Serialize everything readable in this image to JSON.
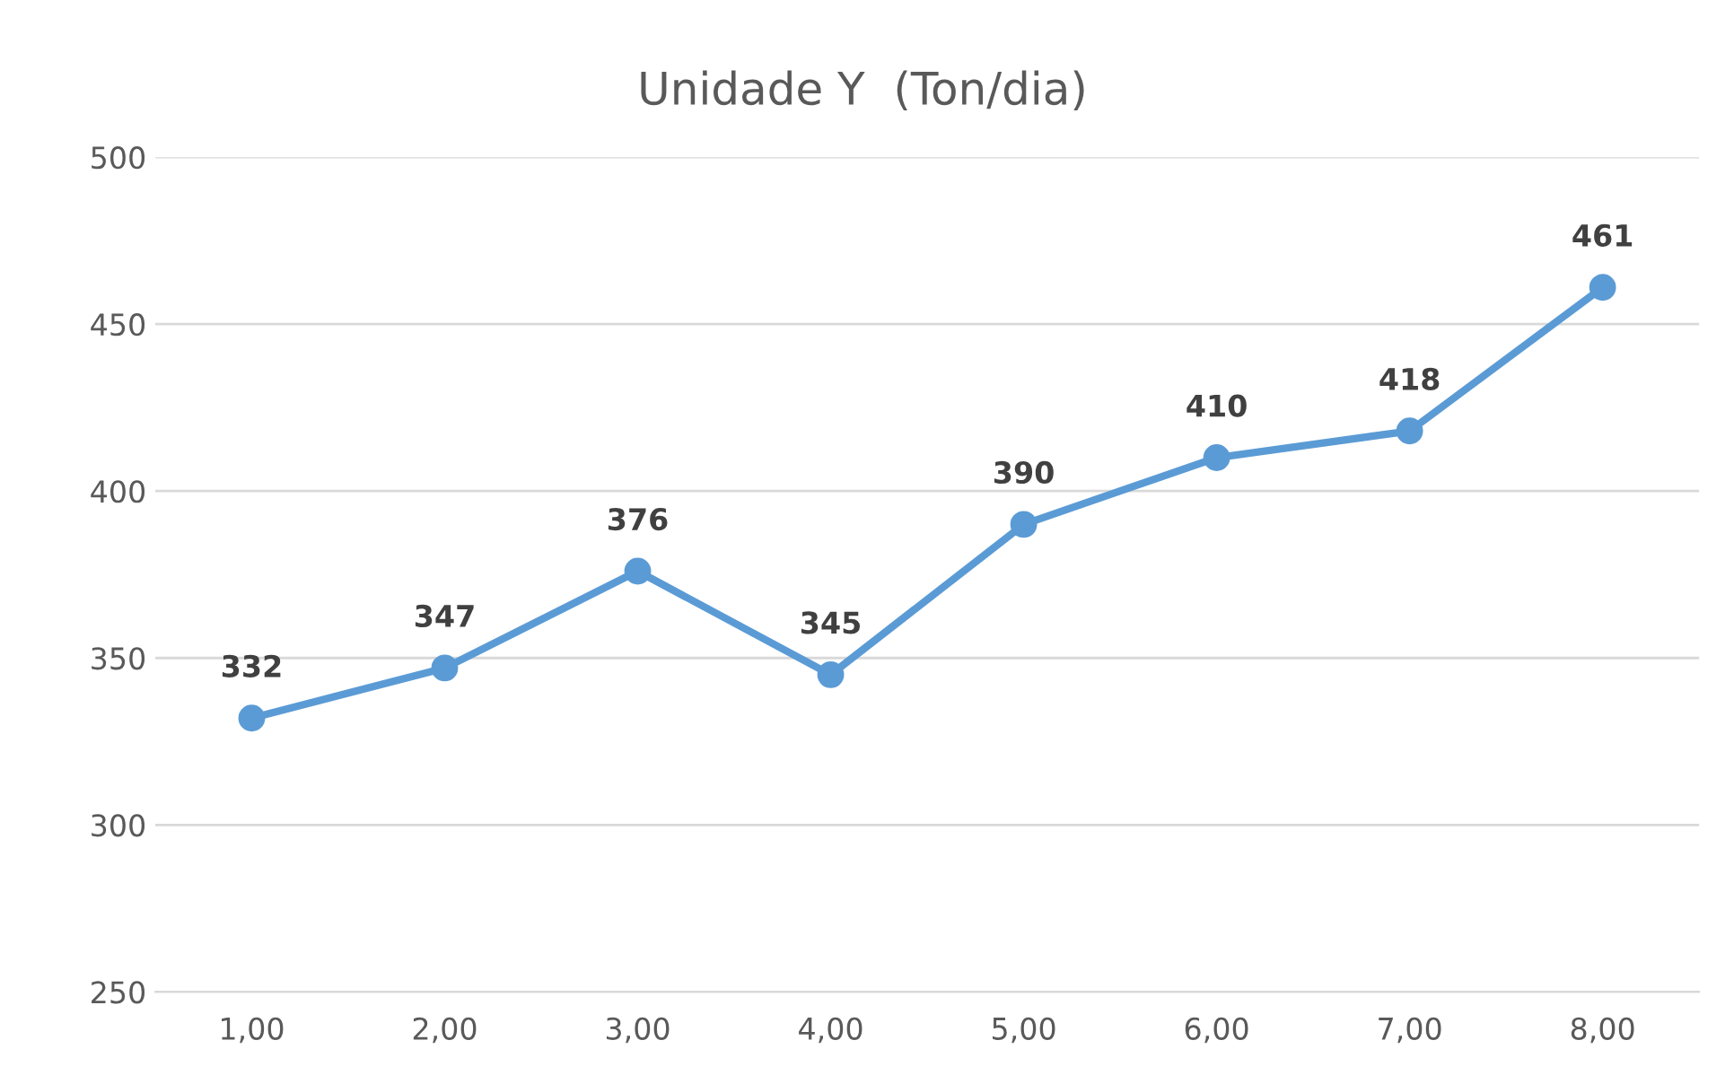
{
  "chart_data": {
    "type": "line",
    "title": "Unidade Y  (Ton/dia)",
    "categories": [
      "1,00",
      "2,00",
      "3,00",
      "4,00",
      "5,00",
      "6,00",
      "7,00",
      "8,00"
    ],
    "series": [
      {
        "color": "#5b9bd5",
        "values": [
          332,
          347,
          376,
          345,
          390,
          410,
          418,
          461
        ]
      }
    ],
    "ylim": [
      250,
      500
    ],
    "yticks": [
      250,
      300,
      350,
      400,
      450,
      500
    ],
    "grid": "y",
    "marker": "circle",
    "line_style": "solid",
    "data_labels": true,
    "legend": false
  }
}
